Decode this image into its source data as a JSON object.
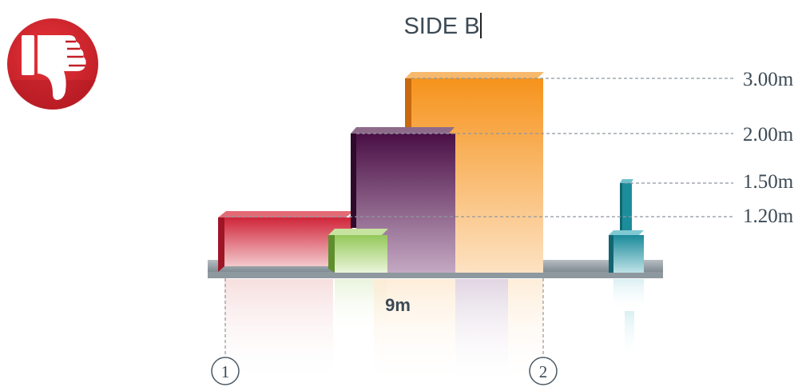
{
  "title": "SIDE B",
  "badge": {
    "icon": "thumbs-down-icon",
    "color": "#d7262d"
  },
  "height_labels": [
    "3.00m",
    "2.00m",
    "1.50m",
    "1.20m"
  ],
  "width_label": "9m",
  "markers": [
    "1",
    "2"
  ],
  "colors": {
    "red": "#c8202e",
    "green": "#8cc152",
    "purple": "#4a0f45",
    "orange": "#f58f1f",
    "teal": "#1a8a99",
    "ground": "#9aa3aa"
  }
}
